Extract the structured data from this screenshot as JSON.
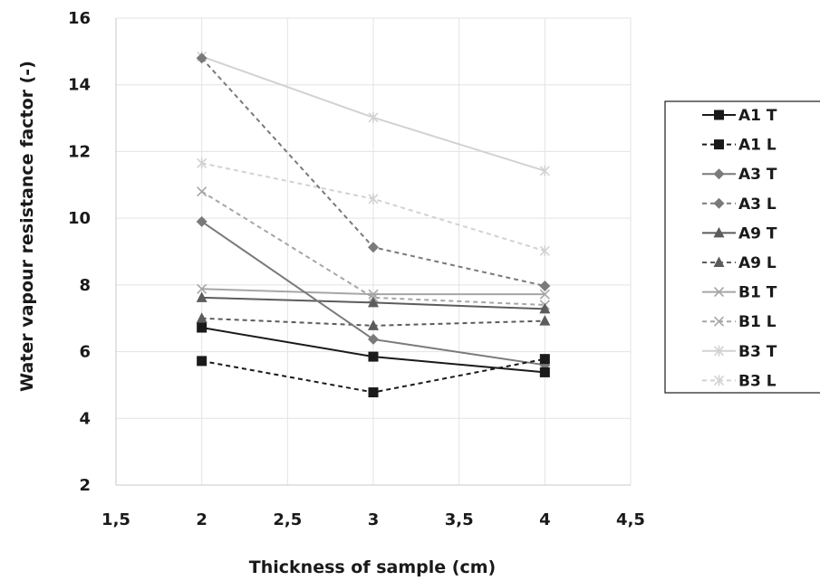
{
  "chart_data": {
    "type": "line",
    "xlabel": "Thickness of sample (cm)",
    "ylabel": "Water vapour resistance factor (-)",
    "xlim": [
      1.5,
      4.5
    ],
    "ylim": [
      2,
      16
    ],
    "x_ticks": [
      1.5,
      2,
      2.5,
      3,
      3.5,
      4,
      4.5
    ],
    "x_tick_labels": [
      "1,5",
      "2",
      "2,5",
      "3",
      "3,5",
      "4",
      "4,5"
    ],
    "y_ticks": [
      2,
      4,
      6,
      8,
      10,
      12,
      14,
      16
    ],
    "y_tick_labels": [
      "2",
      "4",
      "6",
      "8",
      "10",
      "12",
      "14",
      "16"
    ],
    "grid": true,
    "legend_position": "right",
    "x": [
      2,
      3,
      4
    ],
    "series": [
      {
        "name": "A1 T",
        "values": [
          6.72,
          5.85,
          5.38
        ],
        "color": "#1a1a1a",
        "dash": "solid",
        "marker": "square"
      },
      {
        "name": "A1 L",
        "values": [
          5.72,
          4.78,
          5.78
        ],
        "color": "#1a1a1a",
        "dash": "dashed",
        "marker": "square"
      },
      {
        "name": "A3 T",
        "values": [
          9.9,
          6.37,
          5.6
        ],
        "color": "#7a7a7a",
        "dash": "solid",
        "marker": "diamond"
      },
      {
        "name": "A3 L",
        "values": [
          14.8,
          9.13,
          7.97
        ],
        "color": "#7a7a7a",
        "dash": "dashed",
        "marker": "diamond"
      },
      {
        "name": "A9 T",
        "values": [
          7.62,
          7.47,
          7.28
        ],
        "color": "#5c5c5c",
        "dash": "solid",
        "marker": "triangle"
      },
      {
        "name": "A9 L",
        "values": [
          7.0,
          6.78,
          6.92
        ],
        "color": "#5c5c5c",
        "dash": "dashed",
        "marker": "triangle"
      },
      {
        "name": "B1 T",
        "values": [
          7.88,
          7.72,
          7.72
        ],
        "color": "#a6a6a6",
        "dash": "solid",
        "marker": "x"
      },
      {
        "name": "B1 L",
        "values": [
          10.8,
          7.62,
          7.4
        ],
        "color": "#a6a6a6",
        "dash": "dashed",
        "marker": "x"
      },
      {
        "name": "B3 T",
        "values": [
          14.85,
          13.02,
          11.42
        ],
        "color": "#d2d2d2",
        "dash": "solid",
        "marker": "star"
      },
      {
        "name": "B3 L",
        "values": [
          11.65,
          10.58,
          9.02
        ],
        "color": "#d2d2d2",
        "dash": "dashed",
        "marker": "star"
      }
    ]
  }
}
